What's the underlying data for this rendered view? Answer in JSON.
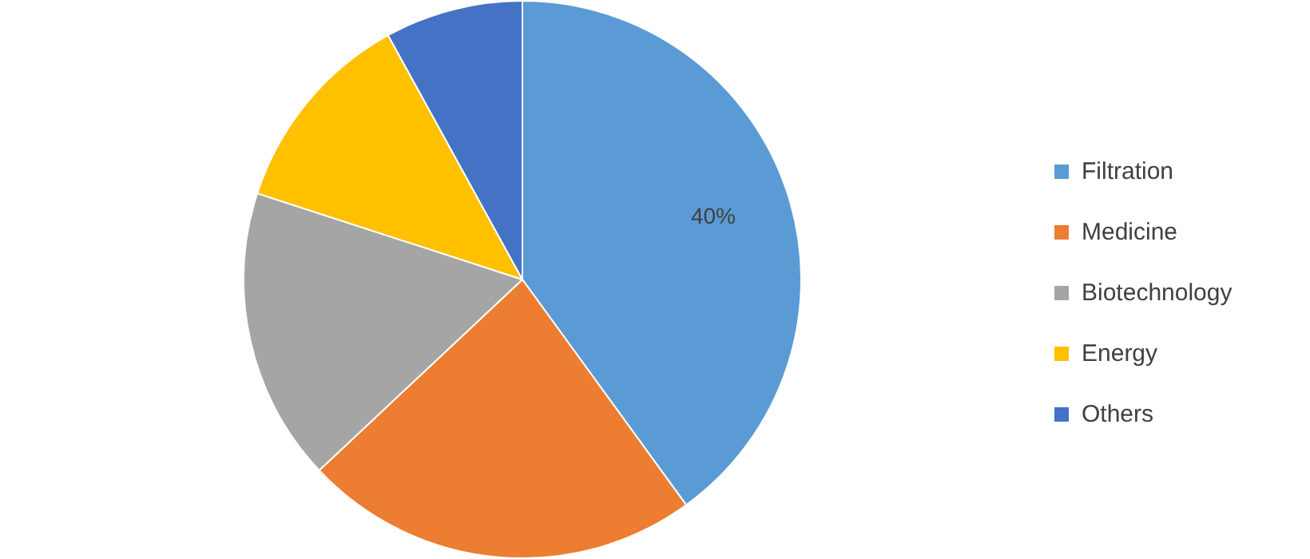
{
  "chart_data": {
    "type": "pie",
    "categories": [
      "Filtration",
      "Medicine",
      "Biotechnology",
      "Energy",
      "Others"
    ],
    "values": [
      40,
      23,
      17,
      12,
      8
    ],
    "colors": [
      "#5b9bd5",
      "#ed7d31",
      "#a5a5a5",
      "#ffc000",
      "#4472c4"
    ],
    "value_labels": [
      "40%",
      null,
      null,
      null,
      null
    ],
    "legend": "right"
  }
}
